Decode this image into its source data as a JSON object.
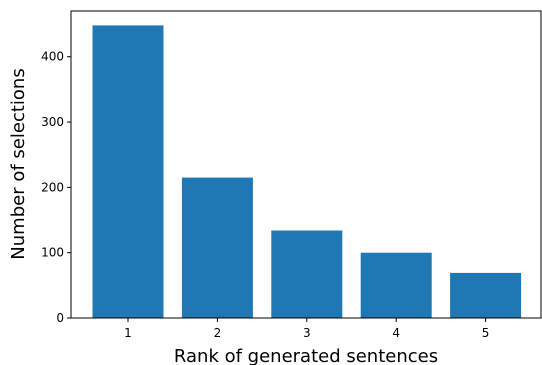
{
  "chart_data": {
    "type": "bar",
    "title": "",
    "xlabel": "Rank of generated sentences",
    "ylabel": "Number of selections",
    "categories": [
      "1",
      "2",
      "3",
      "4",
      "5"
    ],
    "values": [
      448,
      215,
      134,
      100,
      69
    ],
    "ylim": [
      0,
      470
    ],
    "yticks": [
      0,
      100,
      200,
      300,
      400
    ],
    "bar_color": "#1f77b4",
    "grid": false,
    "legend": "none"
  }
}
